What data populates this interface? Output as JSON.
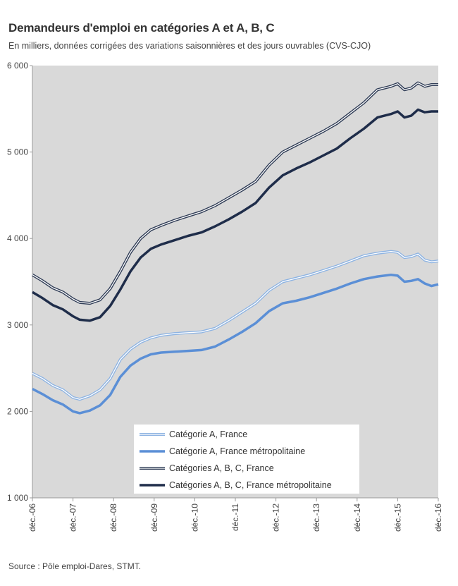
{
  "header": {
    "title": "Demandeurs d'emploi en catégories A et A,  B,  C",
    "subtitle": "En milliers, données corrigées des variations saisonnières et des jours ouvrables (CVS-CJO)"
  },
  "footer": {
    "source": "Source : Pôle emploi-Dares, STMT."
  },
  "chart_data": {
    "type": "line",
    "title": "Demandeurs d'emploi en catégories A et A,  B,  C",
    "subtitle": "En milliers, données corrigées des variations saisonnières et des jours ouvrables (CVS-CJO)",
    "xlabel": "",
    "ylabel": "",
    "ylim": [
      1000,
      6000
    ],
    "yticks": [
      1000,
      2000,
      3000,
      4000,
      5000,
      6000
    ],
    "ytick_labels": [
      "1 000",
      "2 000",
      "3 000",
      "4 000",
      "5 000",
      "6 000"
    ],
    "xlim": [
      0,
      120
    ],
    "xticks": [
      0,
      12,
      24,
      36,
      48,
      60,
      72,
      84,
      96,
      108,
      120
    ],
    "xtick_labels": [
      "déc.-06",
      "déc.-07",
      "déc.-08",
      "déc.-09",
      "déc.-10",
      "déc.-11",
      "déc.-12",
      "déc.-13",
      "déc.-14",
      "déc.-15",
      "déc.-16"
    ],
    "grid": false,
    "background": "#d9d9d9",
    "legend_position": "bottom-center",
    "series": [
      {
        "name": "Catégorie A, France",
        "color": "#8db3e2",
        "style": "double",
        "points": [
          [
            0,
            2440
          ],
          [
            3,
            2380
          ],
          [
            6,
            2300
          ],
          [
            9,
            2250
          ],
          [
            12,
            2160
          ],
          [
            14,
            2140
          ],
          [
            17,
            2180
          ],
          [
            20,
            2250
          ],
          [
            23,
            2380
          ],
          [
            26,
            2600
          ],
          [
            29,
            2720
          ],
          [
            32,
            2800
          ],
          [
            35,
            2850
          ],
          [
            38,
            2880
          ],
          [
            42,
            2900
          ],
          [
            46,
            2910
          ],
          [
            50,
            2920
          ],
          [
            54,
            2960
          ],
          [
            58,
            3050
          ],
          [
            62,
            3150
          ],
          [
            66,
            3250
          ],
          [
            70,
            3400
          ],
          [
            74,
            3500
          ],
          [
            78,
            3540
          ],
          [
            82,
            3580
          ],
          [
            86,
            3630
          ],
          [
            90,
            3680
          ],
          [
            94,
            3740
          ],
          [
            98,
            3800
          ],
          [
            102,
            3830
          ],
          [
            106,
            3850
          ],
          [
            108,
            3840
          ],
          [
            110,
            3780
          ],
          [
            112,
            3790
          ],
          [
            114,
            3820
          ],
          [
            116,
            3750
          ],
          [
            118,
            3730
          ],
          [
            120,
            3740
          ]
        ]
      },
      {
        "name": "Catégorie A, France métropolitaine",
        "color": "#5b8fd6",
        "style": "thick",
        "points": [
          [
            0,
            2260
          ],
          [
            3,
            2200
          ],
          [
            6,
            2130
          ],
          [
            9,
            2080
          ],
          [
            12,
            2000
          ],
          [
            14,
            1980
          ],
          [
            17,
            2010
          ],
          [
            20,
            2070
          ],
          [
            23,
            2190
          ],
          [
            26,
            2400
          ],
          [
            29,
            2530
          ],
          [
            32,
            2610
          ],
          [
            35,
            2660
          ],
          [
            38,
            2680
          ],
          [
            42,
            2690
          ],
          [
            46,
            2700
          ],
          [
            50,
            2710
          ],
          [
            54,
            2750
          ],
          [
            58,
            2830
          ],
          [
            62,
            2920
          ],
          [
            66,
            3020
          ],
          [
            70,
            3160
          ],
          [
            74,
            3250
          ],
          [
            78,
            3280
          ],
          [
            82,
            3320
          ],
          [
            86,
            3370
          ],
          [
            90,
            3420
          ],
          [
            94,
            3480
          ],
          [
            98,
            3530
          ],
          [
            102,
            3560
          ],
          [
            106,
            3580
          ],
          [
            108,
            3570
          ],
          [
            110,
            3500
          ],
          [
            112,
            3510
          ],
          [
            114,
            3530
          ],
          [
            116,
            3480
          ],
          [
            118,
            3450
          ],
          [
            120,
            3470
          ]
        ]
      },
      {
        "name": "Catégories A, B, C, France",
        "color": "#2e3b55",
        "style": "double",
        "points": [
          [
            0,
            3580
          ],
          [
            3,
            3510
          ],
          [
            6,
            3430
          ],
          [
            9,
            3380
          ],
          [
            12,
            3300
          ],
          [
            14,
            3260
          ],
          [
            17,
            3250
          ],
          [
            20,
            3290
          ],
          [
            23,
            3420
          ],
          [
            26,
            3620
          ],
          [
            29,
            3840
          ],
          [
            32,
            4000
          ],
          [
            35,
            4100
          ],
          [
            38,
            4150
          ],
          [
            42,
            4210
          ],
          [
            46,
            4260
          ],
          [
            50,
            4310
          ],
          [
            54,
            4380
          ],
          [
            58,
            4470
          ],
          [
            62,
            4560
          ],
          [
            66,
            4660
          ],
          [
            70,
            4850
          ],
          [
            74,
            5000
          ],
          [
            78,
            5080
          ],
          [
            82,
            5160
          ],
          [
            86,
            5240
          ],
          [
            90,
            5330
          ],
          [
            94,
            5450
          ],
          [
            98,
            5570
          ],
          [
            102,
            5720
          ],
          [
            106,
            5760
          ],
          [
            108,
            5790
          ],
          [
            110,
            5720
          ],
          [
            112,
            5740
          ],
          [
            114,
            5800
          ],
          [
            116,
            5760
          ],
          [
            118,
            5780
          ],
          [
            120,
            5780
          ]
        ]
      },
      {
        "name": "Catégories A, B, C, France métropolitaine",
        "color": "#1f2d4a",
        "style": "thick",
        "points": [
          [
            0,
            3380
          ],
          [
            3,
            3310
          ],
          [
            6,
            3230
          ],
          [
            9,
            3180
          ],
          [
            12,
            3100
          ],
          [
            14,
            3060
          ],
          [
            17,
            3050
          ],
          [
            20,
            3090
          ],
          [
            23,
            3220
          ],
          [
            26,
            3410
          ],
          [
            29,
            3620
          ],
          [
            32,
            3780
          ],
          [
            35,
            3880
          ],
          [
            38,
            3930
          ],
          [
            42,
            3980
          ],
          [
            46,
            4030
          ],
          [
            50,
            4070
          ],
          [
            54,
            4140
          ],
          [
            58,
            4220
          ],
          [
            62,
            4310
          ],
          [
            66,
            4410
          ],
          [
            70,
            4590
          ],
          [
            74,
            4730
          ],
          [
            78,
            4810
          ],
          [
            82,
            4880
          ],
          [
            86,
            4960
          ],
          [
            90,
            5040
          ],
          [
            94,
            5160
          ],
          [
            98,
            5270
          ],
          [
            102,
            5400
          ],
          [
            106,
            5440
          ],
          [
            108,
            5470
          ],
          [
            110,
            5400
          ],
          [
            112,
            5420
          ],
          [
            114,
            5490
          ],
          [
            116,
            5460
          ],
          [
            118,
            5470
          ],
          [
            120,
            5470
          ]
        ]
      }
    ]
  }
}
